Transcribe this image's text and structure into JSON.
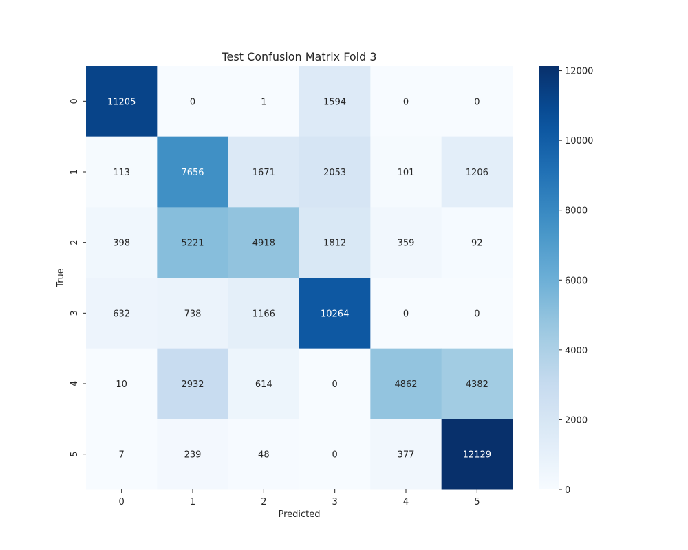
{
  "chart_data": {
    "type": "heatmap",
    "title": "Test Confusion Matrix Fold 3",
    "xlabel": "Predicted",
    "ylabel": "True",
    "x_categories": [
      "0",
      "1",
      "2",
      "3",
      "4",
      "5"
    ],
    "y_categories": [
      "0",
      "1",
      "2",
      "3",
      "4",
      "5"
    ],
    "values": [
      [
        11205,
        0,
        1,
        1594,
        0,
        0
      ],
      [
        113,
        7656,
        1671,
        2053,
        101,
        1206
      ],
      [
        398,
        5221,
        4918,
        1812,
        359,
        92
      ],
      [
        632,
        738,
        1166,
        10264,
        0,
        0
      ],
      [
        10,
        2932,
        614,
        0,
        4862,
        4382
      ],
      [
        7,
        239,
        48,
        0,
        377,
        12129
      ]
    ],
    "colormap": "Blues",
    "colorbar": {
      "vmin": 0,
      "vmax": 12129,
      "ticks": [
        0,
        2000,
        4000,
        6000,
        8000,
        10000,
        12000
      ],
      "tick_labels": [
        "0",
        "2000",
        "4000",
        "6000",
        "8000",
        "10000",
        "12000"
      ]
    },
    "annotations": true,
    "grid": false
  }
}
